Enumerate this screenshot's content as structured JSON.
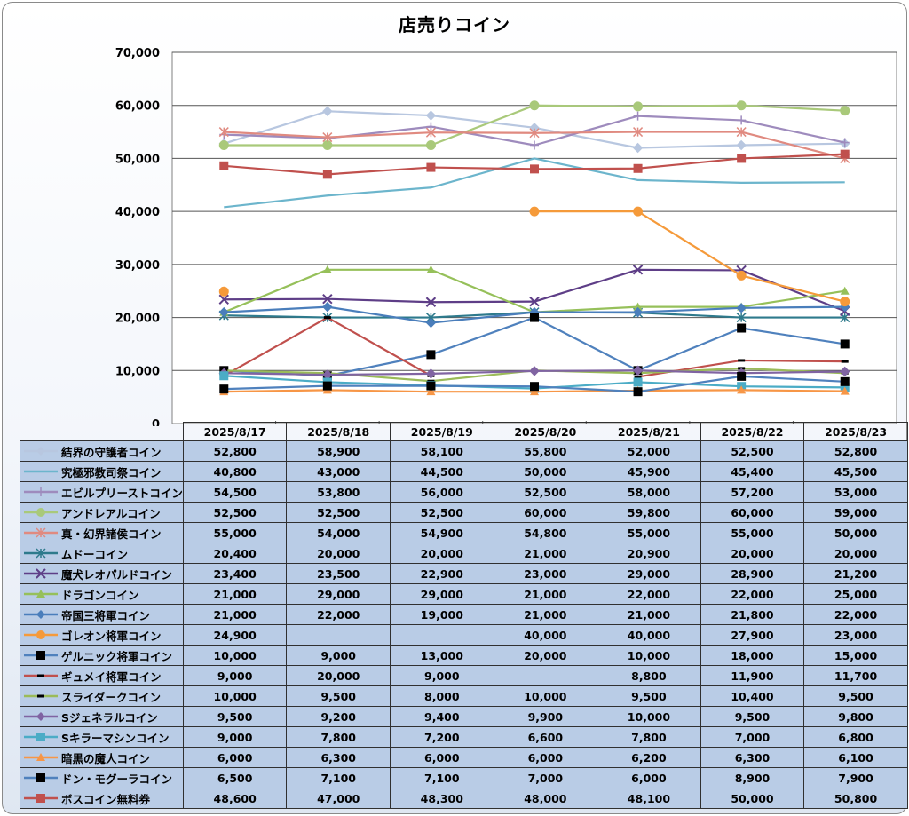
{
  "chart_data": {
    "type": "line",
    "title": "店売りコイン",
    "categories": [
      "2025/8/17",
      "2025/8/18",
      "2025/8/19",
      "2025/8/20",
      "2025/8/21",
      "2025/8/22",
      "2025/8/23"
    ],
    "ylim": [
      0,
      70000
    ],
    "yticks": [
      "0",
      "10,000",
      "20,000",
      "30,000",
      "40,000",
      "50,000",
      "60,000",
      "70,000"
    ],
    "ytick_values": [
      0,
      10000,
      20000,
      30000,
      40000,
      50000,
      60000,
      70000
    ],
    "grid": true,
    "legend": "data-table",
    "series": [
      {
        "name": "結界の守護者コイン",
        "color": "#b8c7e0",
        "marker": "diamond",
        "values": [
          52800,
          58900,
          58100,
          55800,
          52000,
          52500,
          52800
        ],
        "labels": [
          "52,800",
          "58,900",
          "58,100",
          "55,800",
          "52,000",
          "52,500",
          "52,800"
        ]
      },
      {
        "name": "究極邪教司祭コイン",
        "color": "#6cb5cc",
        "marker": "none",
        "values": [
          40800,
          43000,
          44500,
          50000,
          45900,
          45400,
          45500
        ],
        "labels": [
          "40,800",
          "43,000",
          "44,500",
          "50,000",
          "45,900",
          "45,400",
          "45,500"
        ]
      },
      {
        "name": "エビルプリーストコイン",
        "color": "#9e8bbd",
        "marker": "plus",
        "values": [
          54500,
          53800,
          56000,
          52500,
          58000,
          57200,
          53000
        ],
        "labels": [
          "54,500",
          "53,800",
          "56,000",
          "52,500",
          "58,000",
          "57,200",
          "53,000"
        ]
      },
      {
        "name": "アンドレアルコイン",
        "color": "#a9c97a",
        "marker": "circle",
        "values": [
          52500,
          52500,
          52500,
          60000,
          59800,
          60000,
          59000
        ],
        "labels": [
          "52,500",
          "52,500",
          "52,500",
          "60,000",
          "59,800",
          "60,000",
          "59,000"
        ]
      },
      {
        "name": "真・幻界諸侯コイン",
        "color": "#e08a80",
        "marker": "star",
        "values": [
          55000,
          54000,
          54900,
          54800,
          55000,
          55000,
          50000
        ],
        "labels": [
          "55,000",
          "54,000",
          "54,900",
          "54,800",
          "55,000",
          "55,000",
          "50,000"
        ]
      },
      {
        "name": "ムドーコイン",
        "color": "#2e7a8c",
        "marker": "star",
        "values": [
          20400,
          20000,
          20000,
          21000,
          20900,
          20000,
          20000
        ],
        "labels": [
          "20,400",
          "20,000",
          "20,000",
          "21,000",
          "20,900",
          "20,000",
          "20,000"
        ]
      },
      {
        "name": "魔犬レオパルドコイン",
        "color": "#5e3e87",
        "marker": "x",
        "values": [
          23400,
          23500,
          22900,
          23000,
          29000,
          28900,
          21200
        ],
        "labels": [
          "23,400",
          "23,500",
          "22,900",
          "23,000",
          "29,000",
          "28,900",
          "21,200"
        ]
      },
      {
        "name": "ドラゴンコイン",
        "color": "#96c05a",
        "marker": "triangle",
        "values": [
          21000,
          29000,
          29000,
          21000,
          22000,
          22000,
          25000
        ],
        "labels": [
          "21,000",
          "29,000",
          "29,000",
          "21,000",
          "22,000",
          "22,000",
          "25,000"
        ]
      },
      {
        "name": "帝国三将軍コイン",
        "color": "#4a7ebb",
        "marker": "diamond",
        "values": [
          21000,
          22000,
          19000,
          21000,
          21000,
          21800,
          22000
        ],
        "labels": [
          "21,000",
          "22,000",
          "19,000",
          "21,000",
          "21,000",
          "21,800",
          "22,000"
        ]
      },
      {
        "name": "ゴレオン将軍コイン",
        "color": "#f59a3a",
        "marker": "circle",
        "values": [
          24900,
          null,
          null,
          40000,
          40000,
          27900,
          23000
        ],
        "labels": [
          "24,900",
          "",
          "",
          "40,000",
          "40,000",
          "27,900",
          "23,000"
        ]
      },
      {
        "name": "ゲルニック将軍コイン",
        "color": "#4f81bd",
        "marker": "square-black",
        "values": [
          10000,
          9000,
          13000,
          20000,
          10000,
          18000,
          15000
        ],
        "labels": [
          "10,000",
          "9,000",
          "13,000",
          "20,000",
          "10,000",
          "18,000",
          "15,000"
        ]
      },
      {
        "name": "ギュメイ将軍コイン",
        "color": "#c0504d",
        "marker": "dash-black",
        "values": [
          9000,
          20000,
          9000,
          null,
          8800,
          11900,
          11700
        ],
        "labels": [
          "9,000",
          "20,000",
          "9,000",
          "",
          "8,800",
          "11,900",
          "11,700"
        ]
      },
      {
        "name": "スライダークコイン",
        "color": "#9bbb59",
        "marker": "dash-black",
        "values": [
          10000,
          9500,
          8000,
          10000,
          9500,
          10400,
          9500
        ],
        "labels": [
          "10,000",
          "9,500",
          "8,000",
          "10,000",
          "9,500",
          "10,400",
          "9,500"
        ]
      },
      {
        "name": "Sジェネラルコイン",
        "color": "#8064a2",
        "marker": "diamond",
        "values": [
          9500,
          9200,
          9400,
          9900,
          10000,
          9500,
          9800
        ],
        "labels": [
          "9,500",
          "9,200",
          "9,400",
          "9,900",
          "10,000",
          "9,500",
          "9,800"
        ]
      },
      {
        "name": "Sキラーマシンコイン",
        "color": "#4bacc6",
        "marker": "square",
        "values": [
          9000,
          7800,
          7200,
          6600,
          7800,
          7000,
          6800
        ],
        "labels": [
          "9,000",
          "7,800",
          "7,200",
          "6,600",
          "7,800",
          "7,000",
          "6,800"
        ]
      },
      {
        "name": "暗黒の魔人コイン",
        "color": "#f79646",
        "marker": "triangle",
        "values": [
          6000,
          6300,
          6000,
          6000,
          6200,
          6300,
          6100
        ],
        "labels": [
          "6,000",
          "6,300",
          "6,000",
          "6,000",
          "6,200",
          "6,300",
          "6,100"
        ]
      },
      {
        "name": "ドン・モグーラコイン",
        "color": "#4f81bd",
        "marker": "square-black",
        "values": [
          6500,
          7100,
          7100,
          7000,
          6000,
          8900,
          7900
        ],
        "labels": [
          "6,500",
          "7,100",
          "7,100",
          "7,000",
          "6,000",
          "8,900",
          "7,900"
        ]
      },
      {
        "name": "ボスコイン無料券",
        "color": "#c0504d",
        "marker": "square",
        "values": [
          48600,
          47000,
          48300,
          48000,
          48100,
          50000,
          50800
        ],
        "labels": [
          "48,600",
          "47,000",
          "48,300",
          "48,000",
          "48,100",
          "50,000",
          "50,800"
        ]
      }
    ]
  }
}
